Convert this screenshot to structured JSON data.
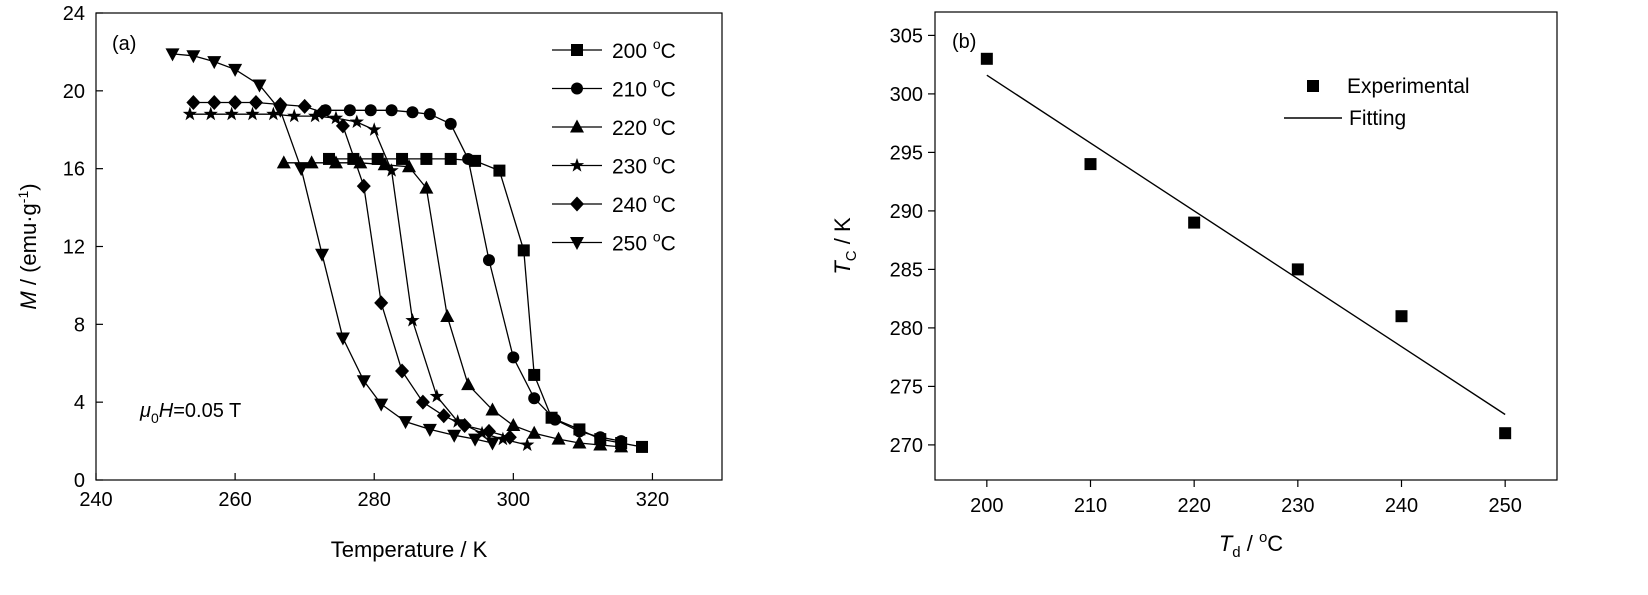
{
  "chart_data": [
    {
      "type": "line",
      "panel_label": "(a)",
      "xlabel": "Temperature / K",
      "ylabel": {
        "main": "M",
        "rest": " / (emu·g",
        "sup": "-1",
        "close": ")"
      },
      "xlim": [
        240,
        330
      ],
      "ylim": [
        0,
        24
      ],
      "xticks": [
        240,
        260,
        280,
        300,
        320
      ],
      "yticks": [
        0,
        4,
        8,
        12,
        16,
        20,
        24
      ],
      "annotation": {
        "prefix": "μ",
        "sub": "0",
        "italic": "H",
        "rest": "=0.05 T"
      },
      "legend_position": "top-right",
      "grid": false,
      "series": [
        {
          "name": "200 °C",
          "name_value": "200",
          "name_sup": "o",
          "name_unit": "C",
          "marker": "square",
          "x": [
            273.5,
            277,
            280.5,
            284,
            287.5,
            291,
            294.5,
            298,
            301.5,
            303,
            305.5,
            309.5,
            312.5,
            315.5,
            318.5
          ],
          "y": [
            16.5,
            16.5,
            16.5,
            16.5,
            16.5,
            16.5,
            16.4,
            15.9,
            11.8,
            5.4,
            3.2,
            2.6,
            2.1,
            1.9,
            1.7
          ]
        },
        {
          "name": "210 °C",
          "name_value": "210",
          "name_sup": "o",
          "name_unit": "C",
          "marker": "circle",
          "x": [
            273,
            276.5,
            279.5,
            282.5,
            285.5,
            288,
            291,
            293.5,
            296.5,
            300,
            303,
            306,
            309.5,
            312.5,
            315.5
          ],
          "y": [
            19.0,
            19.0,
            19.0,
            19.0,
            18.9,
            18.8,
            18.3,
            16.5,
            11.3,
            6.3,
            4.2,
            3.1,
            2.5,
            2.2,
            2.0
          ]
        },
        {
          "name": "220 °C",
          "name_value": "220",
          "name_sup": "o",
          "name_unit": "C",
          "marker": "triangle-up",
          "x": [
            267,
            271,
            274.5,
            278,
            281.5,
            285,
            287.5,
            290.5,
            293.5,
            297,
            300,
            303,
            306.5,
            309.5,
            312.5,
            315.5
          ],
          "y": [
            16.3,
            16.3,
            16.3,
            16.3,
            16.2,
            16.1,
            15.0,
            8.4,
            4.9,
            3.6,
            2.8,
            2.4,
            2.1,
            1.9,
            1.8,
            1.7
          ]
        },
        {
          "name": "230 °C",
          "name_value": "230",
          "name_sup": "o",
          "name_unit": "C",
          "marker": "star",
          "x": [
            253.5,
            256.5,
            259.5,
            262.5,
            265.5,
            268.5,
            271.5,
            274.5,
            277.5,
            280,
            282.5,
            285.5,
            289,
            292,
            295.5,
            298.5,
            302
          ],
          "y": [
            18.8,
            18.8,
            18.8,
            18.8,
            18.8,
            18.7,
            18.7,
            18.6,
            18.4,
            18.0,
            15.9,
            8.2,
            4.3,
            3.0,
            2.4,
            2.1,
            1.8
          ]
        },
        {
          "name": "240 °C",
          "name_value": "240",
          "name_sup": "o",
          "name_unit": "C",
          "marker": "diamond",
          "x": [
            254,
            257,
            260,
            263,
            266.5,
            270,
            272.5,
            275.5,
            278.5,
            281,
            284,
            287,
            290,
            293,
            296.5,
            299.5
          ],
          "y": [
            19.4,
            19.4,
            19.4,
            19.4,
            19.3,
            19.2,
            18.9,
            18.2,
            15.1,
            9.1,
            5.6,
            4.0,
            3.3,
            2.8,
            2.5,
            2.2
          ]
        },
        {
          "name": "250 °C",
          "name_value": "250",
          "name_sup": "o",
          "name_unit": "C",
          "marker": "triangle-down",
          "x": [
            251,
            254,
            257,
            260,
            263.5,
            266.5,
            269.5,
            272.5,
            275.5,
            278.5,
            281,
            284.5,
            288,
            291.5,
            294.5,
            297
          ],
          "y": [
            21.9,
            21.8,
            21.5,
            21.1,
            20.3,
            19.0,
            16.0,
            11.6,
            7.3,
            5.1,
            3.9,
            3.0,
            2.6,
            2.3,
            2.1,
            1.9
          ]
        }
      ]
    },
    {
      "type": "scatter",
      "panel_label": "(b)",
      "xlabel": {
        "italic": "T",
        "sub": "d",
        "rest": " / ",
        "sup": "o",
        "unit": "C"
      },
      "ylabel": {
        "italic": "T",
        "sub": "C",
        "rest": " / K"
      },
      "xlim": [
        195,
        255
      ],
      "ylim": [
        267,
        307
      ],
      "xticks": [
        200,
        210,
        220,
        230,
        240,
        250
      ],
      "yticks": [
        270,
        275,
        280,
        285,
        290,
        295,
        300,
        305
      ],
      "legend_position": "top-right",
      "grid": false,
      "series": [
        {
          "name": "Experimental",
          "marker": "square",
          "x": [
            200,
            210,
            220,
            230,
            240,
            250
          ],
          "y": [
            303,
            294,
            289,
            285,
            281,
            271
          ]
        },
        {
          "name": "Fitting",
          "style": "line",
          "x": [
            200,
            250
          ],
          "y": [
            301.6,
            272.6
          ]
        }
      ]
    }
  ]
}
